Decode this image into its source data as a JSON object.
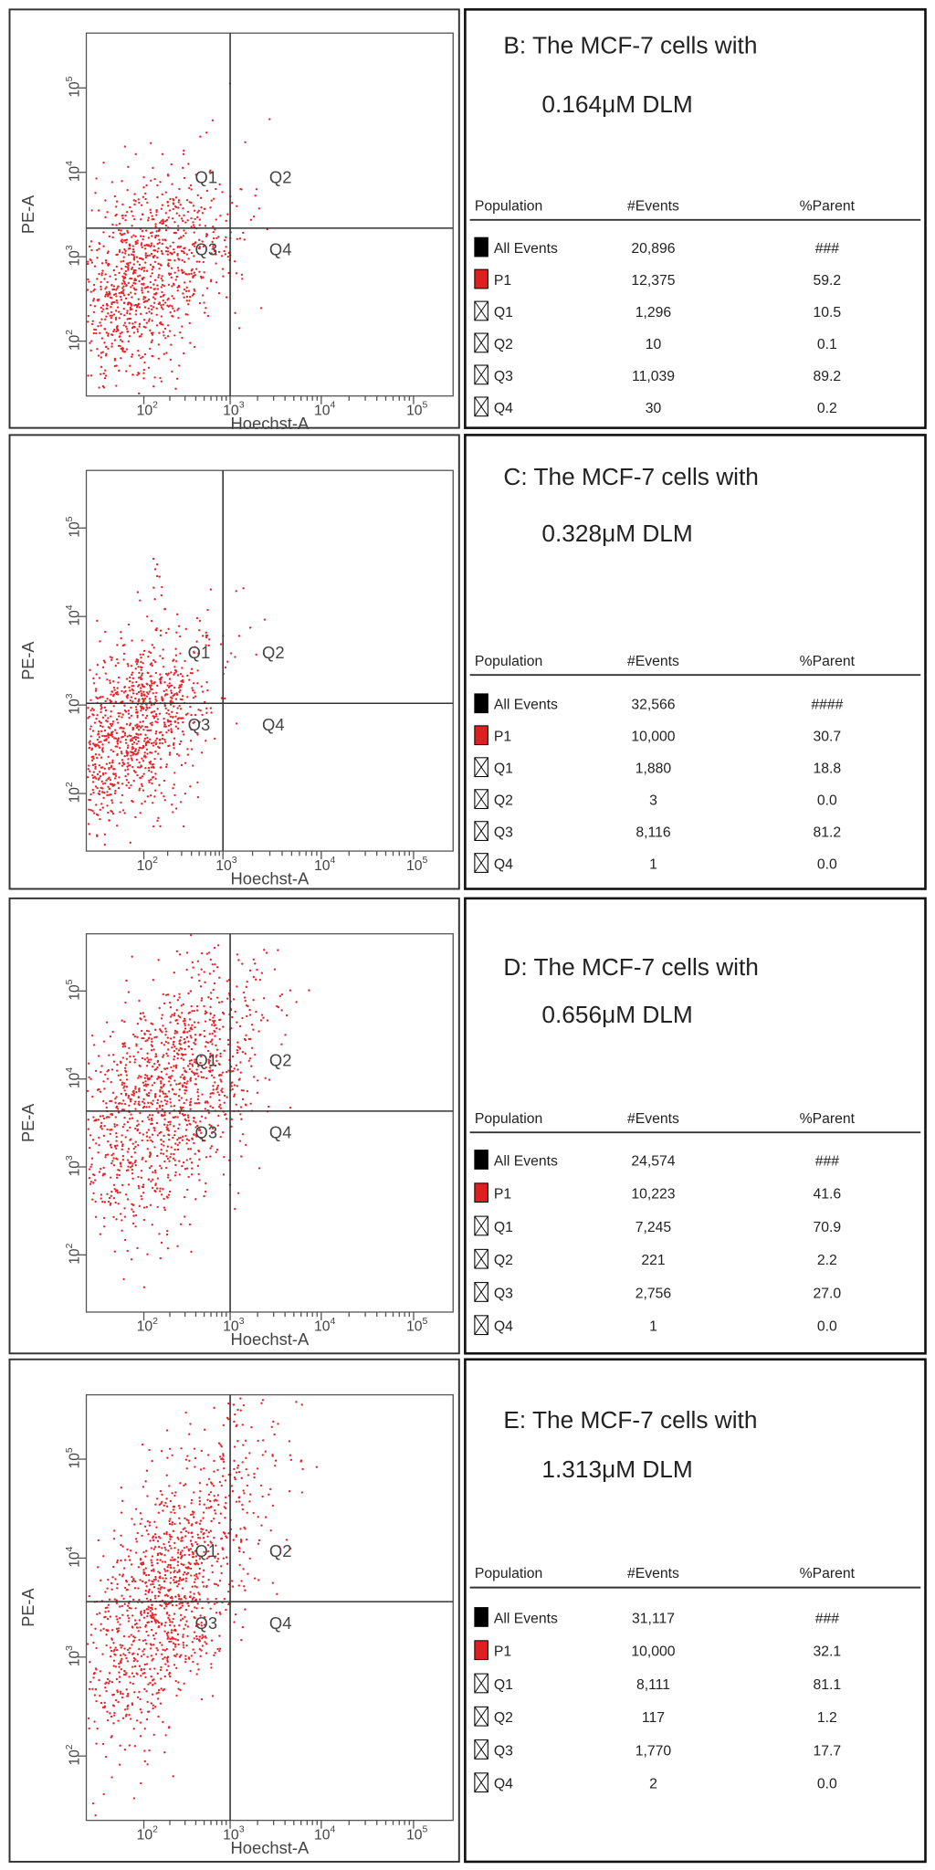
{
  "panels": [
    {
      "title": "B: The MCF-7 cells with",
      "subtitle": "0.164μM DLM",
      "x_label": "Hoechst-A",
      "y_label": "PE-A",
      "tick_base": "10",
      "tick_exponents": [
        "2",
        "3",
        "4",
        "5"
      ],
      "quadrants": [
        "Q1",
        "Q2",
        "Q3",
        "Q4"
      ],
      "table": {
        "header": [
          "Population",
          "#Events",
          "%Parent"
        ],
        "rows": [
          [
            "All Events",
            "20,896",
            "###"
          ],
          [
            "P1",
            "12,375",
            "59.2"
          ],
          [
            "Q1",
            "1,296",
            "10.5"
          ],
          [
            "Q2",
            "10",
            "0.1"
          ],
          [
            "Q3",
            "11,039",
            "89.2"
          ],
          [
            "Q4",
            "30",
            "0.2"
          ]
        ]
      }
    },
    {
      "title": "C: The MCF-7 cells with",
      "subtitle": "0.328μM DLM",
      "x_label": "Hoechst-A",
      "y_label": "PE-A",
      "tick_base": "10",
      "tick_exponents": [
        "2",
        "3",
        "4",
        "5"
      ],
      "quadrants": [
        "Q1",
        "Q2",
        "Q3",
        "Q4"
      ],
      "table": {
        "header": [
          "Population",
          "#Events",
          "%Parent"
        ],
        "rows": [
          [
            "All Events",
            "32,566",
            "####"
          ],
          [
            "P1",
            "10,000",
            "30.7"
          ],
          [
            "Q1",
            "1,880",
            "18.8"
          ],
          [
            "Q2",
            "3",
            "0.0"
          ],
          [
            "Q3",
            "8,116",
            "81.2"
          ],
          [
            "Q4",
            "1",
            "0.0"
          ]
        ]
      }
    },
    {
      "title": "D: The MCF-7 cells with",
      "subtitle": "0.656μM DLM",
      "x_label": "Hoechst-A",
      "y_label": "PE-A",
      "tick_base": "10",
      "tick_exponents": [
        "2",
        "3",
        "4",
        "5"
      ],
      "quadrants": [
        "Q1",
        "Q2",
        "Q3",
        "Q4"
      ],
      "table": {
        "header": [
          "Population",
          "#Events",
          "%Parent"
        ],
        "rows": [
          [
            "All Events",
            "24,574",
            "###"
          ],
          [
            "P1",
            "10,223",
            "41.6"
          ],
          [
            "Q1",
            "7,245",
            "70.9"
          ],
          [
            "Q2",
            "221",
            "2.2"
          ],
          [
            "Q3",
            "2,756",
            "27.0"
          ],
          [
            "Q4",
            "1",
            "0.0"
          ]
        ]
      }
    },
    {
      "title": "E: The MCF-7 cells with",
      "subtitle": "1.313μM DLM",
      "x_label": "Hoechst-A",
      "y_label": "PE-A",
      "tick_base": "10",
      "tick_exponents": [
        "2",
        "3",
        "4",
        "5"
      ],
      "quadrants": [
        "Q1",
        "Q2",
        "Q3",
        "Q4"
      ],
      "table": {
        "header": [
          "Population",
          "#Events",
          "%Parent"
        ],
        "rows": [
          [
            "All Events",
            "31,117",
            "###"
          ],
          [
            "P1",
            "10,000",
            "32.1"
          ],
          [
            "Q1",
            "8,111",
            "81.1"
          ],
          [
            "Q2",
            "117",
            "1.2"
          ],
          [
            "Q3",
            "1,770",
            "17.7"
          ],
          [
            "Q4",
            "2",
            "0.0"
          ]
        ]
      }
    }
  ]
}
